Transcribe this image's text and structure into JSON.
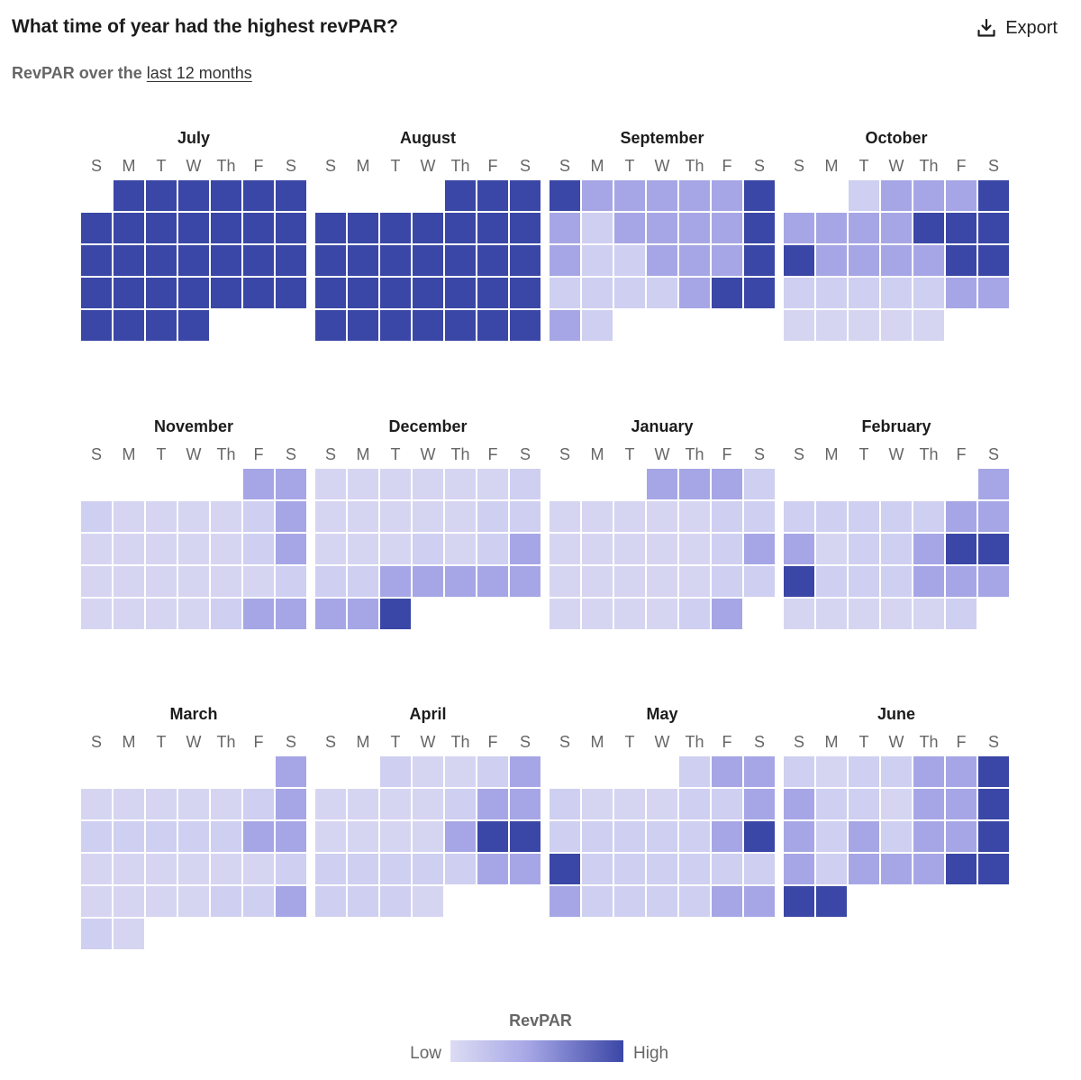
{
  "header": {
    "title": "What time of year had the highest revPAR?",
    "subtitle_prefix": "RevPAR over the",
    "subtitle_link": "last 12 months",
    "export_label": "Export",
    "export_icon": "download-icon"
  },
  "colors": {
    "low": "#dcdcf4",
    "mid": "#a6a6e6",
    "high": "#3b47a6",
    "scale": [
      "#dcdcf4",
      "#d9d9ef",
      "#d6d6f9",
      "#a6a6e6",
      "#3b47a6"
    ]
  },
  "chart_data": {
    "type": "heatmap",
    "title": "What time of year had the highest revPAR?",
    "subtitle": "RevPAR over the last 12 months",
    "weekdays": [
      "S",
      "M",
      "T",
      "W",
      "Th",
      "F",
      "S"
    ],
    "value_scale": "relative revPAR level (0 = low, 1 = high) estimated from cell color",
    "months": [
      {
        "name": "July",
        "start_weekday": 1,
        "days": 31,
        "values": [
          1,
          1,
          1,
          1,
          1,
          1,
          1,
          1,
          1,
          1,
          1,
          1,
          1,
          1,
          1,
          1,
          1,
          1,
          1,
          1,
          1,
          1,
          1,
          1,
          1,
          1,
          1,
          1,
          1,
          1,
          1
        ]
      },
      {
        "name": "August",
        "start_weekday": 4,
        "days": 31,
        "values": [
          1,
          1,
          1,
          1,
          1,
          1,
          1,
          1,
          1,
          1,
          1,
          1,
          1,
          1,
          1,
          1,
          1,
          1,
          1,
          1,
          1,
          1,
          1,
          1,
          1,
          1,
          1,
          1,
          1,
          1,
          1
        ]
      },
      {
        "name": "September",
        "start_weekday": 0,
        "days": 30,
        "values": [
          1,
          0.4,
          0.4,
          0.4,
          0.4,
          0.4,
          1,
          0.4,
          0.1,
          0.4,
          0.4,
          0.4,
          0.4,
          1,
          0.4,
          0.1,
          0.1,
          0.4,
          0.4,
          0.4,
          1,
          0.1,
          0.1,
          0.1,
          0.1,
          0.4,
          1,
          1,
          0.4,
          0.1
        ]
      },
      {
        "name": "October",
        "start_weekday": 2,
        "days": 31,
        "values": [
          0.1,
          0.4,
          0.4,
          0.4,
          1,
          0.4,
          0.4,
          0.4,
          0.4,
          1,
          1,
          1,
          1,
          0.4,
          0.4,
          0.4,
          0.4,
          1,
          1,
          0.1,
          0.1,
          0.1,
          0.1,
          0.1,
          0.4,
          0.4,
          0.05,
          0.05,
          0.05,
          0.05,
          0.05
        ]
      },
      {
        "name": "November",
        "start_weekday": 5,
        "days": 30,
        "values": [
          0.4,
          0.4,
          0.1,
          0.05,
          0.05,
          0.05,
          0.05,
          0.1,
          0.4,
          0.05,
          0.05,
          0.05,
          0.05,
          0.05,
          0.1,
          0.4,
          0.05,
          0.05,
          0.05,
          0.05,
          0.05,
          0.05,
          0.1,
          0.05,
          0.05,
          0.05,
          0.05,
          0.1,
          0.4,
          0.4
        ]
      },
      {
        "name": "December",
        "start_weekday": 0,
        "days": 31,
        "values": [
          0.05,
          0.05,
          0.05,
          0.05,
          0.05,
          0.05,
          0.1,
          0.05,
          0.05,
          0.05,
          0.05,
          0.05,
          0.1,
          0.1,
          0.05,
          0.05,
          0.05,
          0.1,
          0.05,
          0.1,
          0.4,
          0.1,
          0.1,
          0.4,
          0.4,
          0.4,
          0.4,
          0.4,
          0.4,
          0.4,
          1
        ]
      },
      {
        "name": "January",
        "start_weekday": 3,
        "days": 31,
        "values": [
          0.4,
          0.4,
          0.4,
          0.1,
          0.05,
          0.05,
          0.05,
          0.05,
          0.05,
          0.1,
          0.1,
          0.05,
          0.05,
          0.05,
          0.05,
          0.05,
          0.1,
          0.4,
          0.05,
          0.05,
          0.05,
          0.05,
          0.05,
          0.1,
          0.1,
          0.05,
          0.05,
          0.05,
          0.05,
          0.1,
          0.4
        ]
      },
      {
        "name": "February",
        "start_weekday": 6,
        "days": 28,
        "values": [
          0.4,
          0.1,
          0.1,
          0.1,
          0.1,
          0.1,
          0.4,
          0.4,
          0.4,
          0.05,
          0.1,
          0.1,
          0.4,
          1,
          1,
          1,
          0.1,
          0.1,
          0.1,
          0.4,
          0.4,
          0.4,
          0.05,
          0.05,
          0.05,
          0.05,
          0.05,
          0.1
        ]
      },
      {
        "name": "March",
        "start_weekday": 6,
        "days": 31,
        "values": [
          0.4,
          0.05,
          0.05,
          0.05,
          0.05,
          0.05,
          0.1,
          0.4,
          0.1,
          0.1,
          0.1,
          0.1,
          0.1,
          0.4,
          0.4,
          0.05,
          0.05,
          0.05,
          0.05,
          0.05,
          0.05,
          0.1,
          0.05,
          0.05,
          0.05,
          0.05,
          0.1,
          0.1,
          0.4,
          0.1,
          0.05
        ]
      },
      {
        "name": "April",
        "start_weekday": 2,
        "days": 30,
        "values": [
          0.1,
          0.05,
          0.05,
          0.1,
          0.4,
          0.05,
          0.05,
          0.05,
          0.05,
          0.1,
          0.4,
          0.4,
          0.05,
          0.05,
          0.05,
          0.05,
          0.4,
          1,
          1,
          0.1,
          0.1,
          0.1,
          0.1,
          0.1,
          0.4,
          0.4,
          0.1,
          0.1,
          0.1,
          0.05
        ]
      },
      {
        "name": "May",
        "start_weekday": 4,
        "days": 31,
        "values": [
          0.1,
          0.4,
          0.4,
          0.1,
          0.05,
          0.05,
          0.05,
          0.1,
          0.1,
          0.4,
          0.1,
          0.1,
          0.1,
          0.1,
          0.1,
          0.4,
          1,
          1,
          0.1,
          0.1,
          0.1,
          0.1,
          0.1,
          0.1,
          0.4,
          0.1,
          0.1,
          0.1,
          0.1,
          0.4,
          0.4
        ]
      },
      {
        "name": "June",
        "start_weekday": 0,
        "days": 30,
        "values": [
          0.1,
          0.05,
          0.1,
          0.1,
          0.4,
          0.4,
          1,
          0.4,
          0.1,
          0.1,
          0.05,
          0.4,
          0.4,
          1,
          0.4,
          0.1,
          0.4,
          0.1,
          0.4,
          0.4,
          1,
          0.4,
          0.1,
          0.4,
          0.4,
          0.4,
          1,
          1,
          1,
          1
        ]
      }
    ],
    "legend": {
      "title": "RevPAR",
      "low_label": "Low",
      "high_label": "High",
      "placement": "bottom-center"
    }
  }
}
